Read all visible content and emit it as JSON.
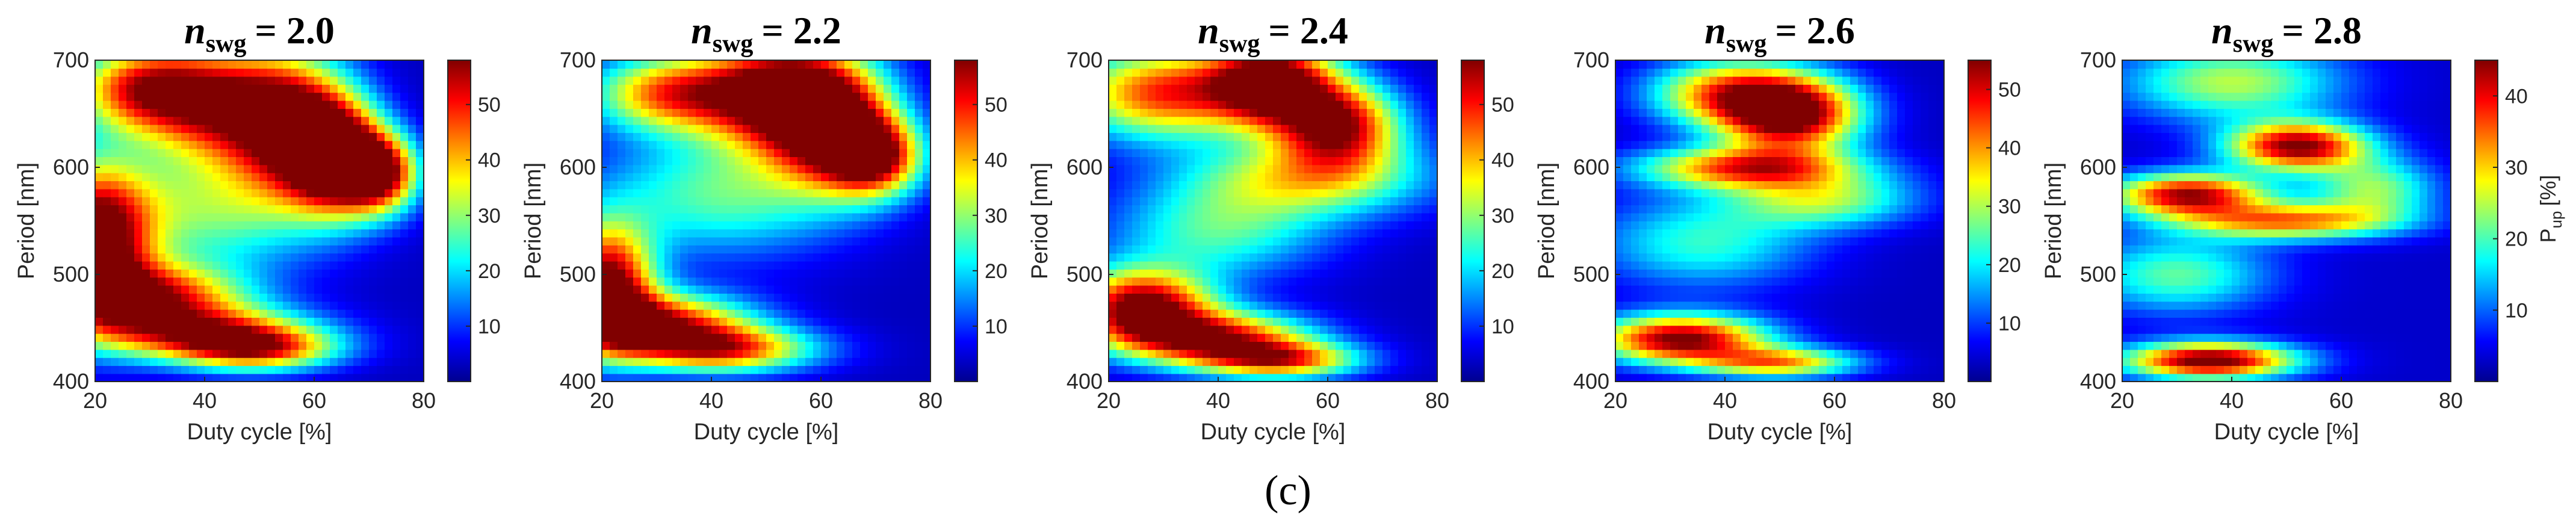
{
  "figure": {
    "caption": "(c)",
    "colormap": [
      "#00008f",
      "#0000ff",
      "#0080ff",
      "#00ffff",
      "#80ff80",
      "#ffff00",
      "#ff8000",
      "#ff0000",
      "#800000"
    ]
  },
  "chart_data": [
    {
      "type": "heatmap",
      "title_symbol": "n",
      "title_subscript": "swg",
      "title_value": "= 2.0",
      "xlabel": "Duty cycle [%]",
      "ylabel": "Period [nm]",
      "xlim": [
        20,
        80
      ],
      "ylim": [
        400,
        700
      ],
      "xticks": [
        "20",
        "40",
        "60",
        "80"
      ],
      "yticks": [
        "400",
        "500",
        "600",
        "700"
      ],
      "colorbar": {
        "label_main": "",
        "label_sub": "",
        "clim": [
          0,
          58
        ],
        "ticks": [
          "10",
          "20",
          "30",
          "40",
          "50"
        ]
      },
      "features": [
        {
          "dc": 20,
          "p": 530,
          "v": 57,
          "sdc": 7,
          "sp": 50
        },
        {
          "dc": 30,
          "p": 480,
          "v": 45,
          "sdc": 12,
          "sp": 22
        },
        {
          "dc": 40,
          "p": 445,
          "v": 42,
          "sdc": 14,
          "sp": 18
        },
        {
          "dc": 50,
          "p": 430,
          "v": 35,
          "sdc": 10,
          "sp": 14
        },
        {
          "dc": 28,
          "p": 675,
          "v": 40,
          "sdc": 9,
          "sp": 28
        },
        {
          "dc": 42,
          "p": 660,
          "v": 44,
          "sdc": 10,
          "sp": 38
        },
        {
          "dc": 56,
          "p": 640,
          "v": 48,
          "sdc": 8,
          "sp": 45
        },
        {
          "dc": 64,
          "p": 610,
          "v": 54,
          "sdc": 6,
          "sp": 35
        },
        {
          "dc": 72,
          "p": 595,
          "v": 50,
          "sdc": 5,
          "sp": 25
        },
        {
          "dc": 40,
          "p": 560,
          "v": 25,
          "sdc": 16,
          "sp": 40
        }
      ]
    },
    {
      "type": "heatmap",
      "title_symbol": "n",
      "title_subscript": "swg",
      "title_value": "= 2.2",
      "xlabel": "Duty cycle [%]",
      "ylabel": "Period [nm]",
      "xlim": [
        20,
        80
      ],
      "ylim": [
        400,
        700
      ],
      "xticks": [
        "20",
        "40",
        "60",
        "80"
      ],
      "yticks": [
        "400",
        "500",
        "600",
        "700"
      ],
      "colorbar": {
        "label_main": "",
        "label_sub": "",
        "clim": [
          0,
          58
        ],
        "ticks": [
          "10",
          "20",
          "30",
          "40",
          "50"
        ]
      },
      "features": [
        {
          "dc": 21,
          "p": 490,
          "v": 57,
          "sdc": 6,
          "sp": 40
        },
        {
          "dc": 30,
          "p": 455,
          "v": 48,
          "sdc": 12,
          "sp": 20
        },
        {
          "dc": 42,
          "p": 430,
          "v": 42,
          "sdc": 12,
          "sp": 15
        },
        {
          "dc": 32,
          "p": 670,
          "v": 40,
          "sdc": 10,
          "sp": 25
        },
        {
          "dc": 52,
          "p": 670,
          "v": 55,
          "sdc": 10,
          "sp": 35
        },
        {
          "dc": 62,
          "p": 640,
          "v": 50,
          "sdc": 8,
          "sp": 40
        },
        {
          "dc": 70,
          "p": 610,
          "v": 45,
          "sdc": 6,
          "sp": 25
        },
        {
          "dc": 42,
          "p": 575,
          "v": 24,
          "sdc": 16,
          "sp": 40
        }
      ]
    },
    {
      "type": "heatmap",
      "title_symbol": "n",
      "title_subscript": "swg",
      "title_value": "= 2.4",
      "xlabel": "Duty cycle [%]",
      "ylabel": "Period [nm]",
      "xlim": [
        20,
        80
      ],
      "ylim": [
        400,
        700
      ],
      "xticks": [
        "20",
        "40",
        "60",
        "80"
      ],
      "yticks": [
        "400",
        "500",
        "600",
        "700"
      ],
      "colorbar": {
        "label_main": "",
        "label_sub": "",
        "clim": [
          0,
          58
        ],
        "ticks": [
          "10",
          "20",
          "30",
          "40",
          "50"
        ]
      },
      "features": [
        {
          "dc": 26,
          "p": 470,
          "v": 57,
          "sdc": 9,
          "sp": 25
        },
        {
          "dc": 40,
          "p": 440,
          "v": 48,
          "sdc": 12,
          "sp": 18
        },
        {
          "dc": 52,
          "p": 420,
          "v": 38,
          "sdc": 10,
          "sp": 12
        },
        {
          "dc": 30,
          "p": 670,
          "v": 45,
          "sdc": 12,
          "sp": 30
        },
        {
          "dc": 50,
          "p": 680,
          "v": 57,
          "sdc": 8,
          "sp": 28
        },
        {
          "dc": 62,
          "p": 640,
          "v": 50,
          "sdc": 8,
          "sp": 28
        },
        {
          "dc": 56,
          "p": 590,
          "v": 30,
          "sdc": 16,
          "sp": 25
        },
        {
          "dc": 40,
          "p": 540,
          "v": 22,
          "sdc": 14,
          "sp": 30
        }
      ]
    },
    {
      "type": "heatmap",
      "title_symbol": "n",
      "title_subscript": "swg",
      "title_value": "= 2.6",
      "xlabel": "Duty cycle [%]",
      "ylabel": "Period [nm]",
      "xlim": [
        20,
        80
      ],
      "ylim": [
        400,
        700
      ],
      "xticks": [
        "20",
        "40",
        "60",
        "80"
      ],
      "yticks": [
        "400",
        "500",
        "600",
        "700"
      ],
      "colorbar": {
        "label_main": "",
        "label_sub": "",
        "clim": [
          0,
          55
        ],
        "ticks": [
          "10",
          "20",
          "30",
          "40",
          "50"
        ]
      },
      "features": [
        {
          "dc": 32,
          "p": 440,
          "v": 53,
          "sdc": 11,
          "sp": 16
        },
        {
          "dc": 50,
          "p": 418,
          "v": 35,
          "sdc": 10,
          "sp": 10
        },
        {
          "dc": 52,
          "p": 650,
          "v": 55,
          "sdc": 9,
          "sp": 25
        },
        {
          "dc": 40,
          "p": 670,
          "v": 35,
          "sdc": 10,
          "sp": 22
        },
        {
          "dc": 44,
          "p": 600,
          "v": 40,
          "sdc": 14,
          "sp": 14
        },
        {
          "dc": 58,
          "p": 570,
          "v": 25,
          "sdc": 12,
          "sp": 18
        },
        {
          "dc": 36,
          "p": 530,
          "v": 20,
          "sdc": 14,
          "sp": 30
        }
      ]
    },
    {
      "type": "heatmap",
      "title_symbol": "n",
      "title_subscript": "swg",
      "title_value": "= 2.8",
      "xlabel": "Duty cycle [%]",
      "ylabel": "Period [nm]",
      "xlim": [
        20,
        80
      ],
      "ylim": [
        400,
        700
      ],
      "xticks": [
        "20",
        "40",
        "60",
        "80"
      ],
      "yticks": [
        "400",
        "500",
        "600",
        "700"
      ],
      "colorbar": {
        "label_main": "P",
        "label_sub": "up",
        "label_unit": "[%]",
        "clim": [
          0,
          45
        ],
        "ticks": [
          "10",
          "20",
          "30",
          "40"
        ]
      },
      "features": [
        {
          "dc": 36,
          "p": 420,
          "v": 45,
          "sdc": 11,
          "sp": 12
        },
        {
          "dc": 52,
          "p": 620,
          "v": 42,
          "sdc": 9,
          "sp": 16
        },
        {
          "dc": 32,
          "p": 575,
          "v": 40,
          "sdc": 10,
          "sp": 14
        },
        {
          "dc": 50,
          "p": 550,
          "v": 30,
          "sdc": 14,
          "sp": 12
        },
        {
          "dc": 40,
          "p": 680,
          "v": 22,
          "sdc": 14,
          "sp": 25
        },
        {
          "dc": 30,
          "p": 500,
          "v": 18,
          "sdc": 12,
          "sp": 25
        },
        {
          "dc": 66,
          "p": 580,
          "v": 20,
          "sdc": 8,
          "sp": 20
        }
      ]
    }
  ]
}
